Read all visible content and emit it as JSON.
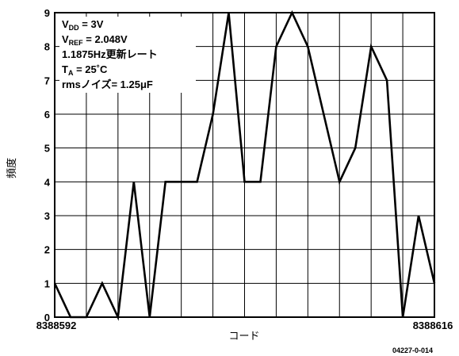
{
  "chart_data": {
    "type": "line",
    "x": [
      8388592,
      8388593,
      8388594,
      8388595,
      8388596,
      8388597,
      8388598,
      8388599,
      8388600,
      8388601,
      8388602,
      8388603,
      8388604,
      8388605,
      8388606,
      8388607,
      8388608,
      8388609,
      8388610,
      8388611,
      8388612,
      8388613,
      8388614,
      8388615,
      8388616
    ],
    "values": [
      1,
      0,
      0,
      1,
      0,
      4,
      0,
      4,
      4,
      4,
      6,
      9,
      4,
      4,
      8,
      9,
      8,
      6,
      4,
      5,
      8,
      7,
      0,
      3,
      1
    ],
    "xlim": [
      8388592,
      8388616
    ],
    "ylim": [
      0,
      9
    ],
    "yticks": [
      "0",
      "1",
      "2",
      "3",
      "4",
      "5",
      "6",
      "7",
      "8",
      "9"
    ],
    "xtick_left": "8388592",
    "xtick_right": "8388616",
    "xlabel": "コード",
    "ylabel": "頻度",
    "grid": true,
    "annotation": {
      "vdd_main": "V",
      "vdd_sub": "DD",
      "vdd_rest": " = 3V",
      "vref_main": "V",
      "vref_sub": "REF",
      "vref_rest": " = 2.048V",
      "rate": "1.1875Hz更新レート",
      "ta_main": "T",
      "ta_sub": "A",
      "ta_rest": " = 25˚C",
      "noise": "rmsノイズ= 1.25μF"
    }
  },
  "figure_id": "04227-0-014"
}
